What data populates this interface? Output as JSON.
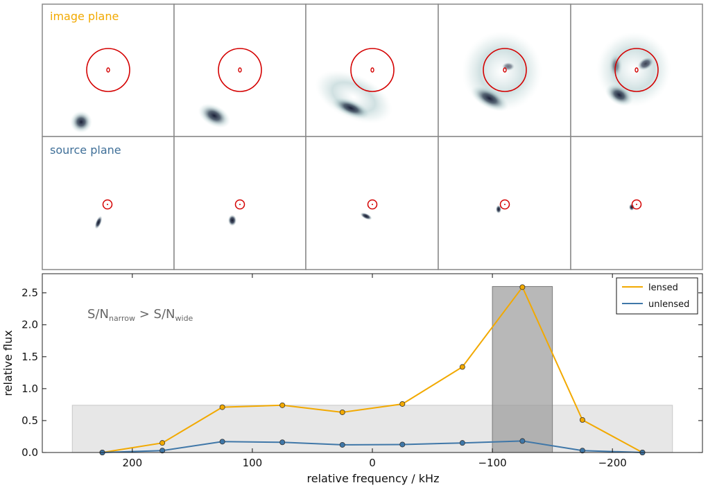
{
  "image_plane_label": "image plane",
  "source_plane_label": "source plane",
  "colors": {
    "lensed": "#f2a900",
    "unlensed": "#3f77a8",
    "critical_curve": "#d40000",
    "panel_border": "#888888",
    "band_narrow": "#9a9a9a",
    "band_wide": "#e3e3e3"
  },
  "chart_data": {
    "type": "line",
    "xlabel": "relative frequency / kHz",
    "ylabel": "relative flux",
    "annotation": "S/N_narrow > S/N_wide",
    "xlim": [
      275,
      -275
    ],
    "ylim": [
      0,
      2.8
    ],
    "x_ticks": [
      200,
      100,
      0,
      -100,
      -200
    ],
    "x_tick_labels": [
      "200",
      "100",
      "0",
      "−100",
      "−200"
    ],
    "y_ticks": [
      0.0,
      0.5,
      1.0,
      1.5,
      2.0,
      2.5
    ],
    "y_tick_labels": [
      "0.0",
      "0.5",
      "1.0",
      "1.5",
      "2.0",
      "2.5"
    ],
    "legend_position": "top-right",
    "x": [
      225,
      175,
      125,
      75,
      25,
      -25,
      -75,
      -125,
      -175,
      -225
    ],
    "series": [
      {
        "name": "lensed",
        "values": [
          0.0,
          0.15,
          0.71,
          0.74,
          0.63,
          0.76,
          1.34,
          2.59,
          0.51,
          0.0
        ]
      },
      {
        "name": "unlensed",
        "values": [
          0.0,
          0.03,
          0.17,
          0.16,
          0.12,
          0.125,
          0.15,
          0.18,
          0.03,
          0.0
        ]
      }
    ],
    "bands": [
      {
        "name": "wide",
        "x_range": [
          250,
          -250
        ],
        "y_max": 0.74
      },
      {
        "name": "narrow",
        "x_range": [
          -100,
          -150
        ],
        "y_max": 2.6
      }
    ]
  }
}
